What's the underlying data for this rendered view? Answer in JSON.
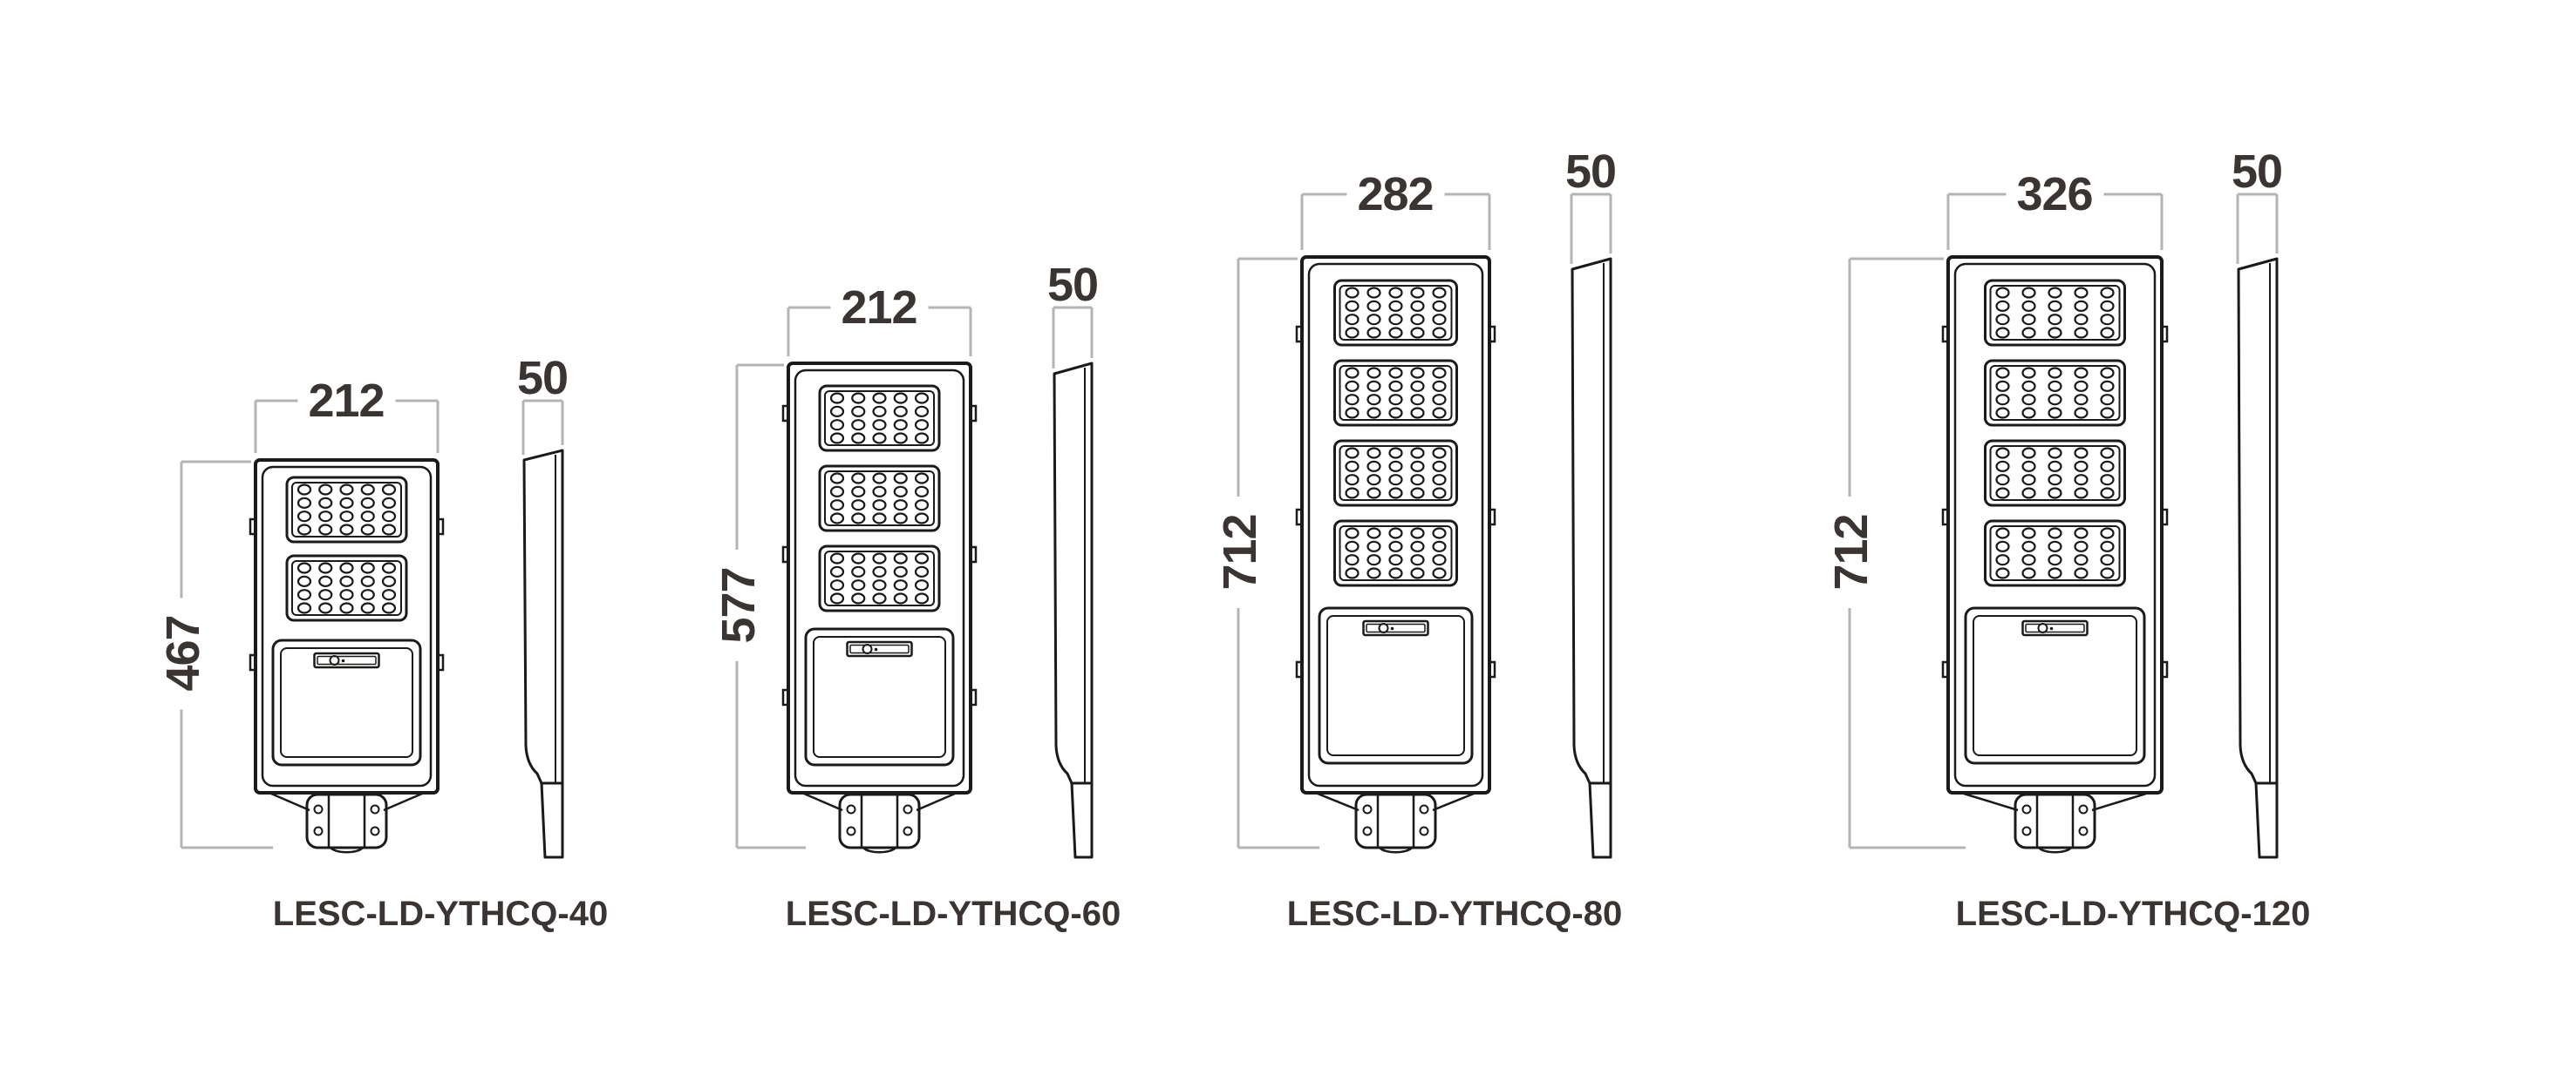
{
  "page": {
    "background": "#ffffff"
  },
  "drawing": {
    "line_color": "#1c1a19",
    "dimension_line_color": "#b4b4b4",
    "text_color": "#3a3432",
    "unit_note": ""
  },
  "fixtures": [
    {
      "model": "LESC-LD-YTHCQ-40",
      "width_mm": "212",
      "height_mm": "467",
      "depth_mm": "50",
      "led_panels": 2,
      "led_columns": 5,
      "led_rows": 4
    },
    {
      "model": "LESC-LD-YTHCQ-60",
      "width_mm": "212",
      "height_mm": "577",
      "depth_mm": "50",
      "led_panels": 3,
      "led_columns": 5,
      "led_rows": 4
    },
    {
      "model": "LESC-LD-YTHCQ-80",
      "width_mm": "282",
      "height_mm": "712",
      "depth_mm": "50",
      "led_panels": 4,
      "led_columns": 5,
      "led_rows": 4
    },
    {
      "model": "LESC-LD-YTHCQ-120",
      "width_mm": "326",
      "height_mm": "712",
      "depth_mm": "50",
      "led_panels": 4,
      "led_columns": 5,
      "led_rows": 4
    }
  ]
}
